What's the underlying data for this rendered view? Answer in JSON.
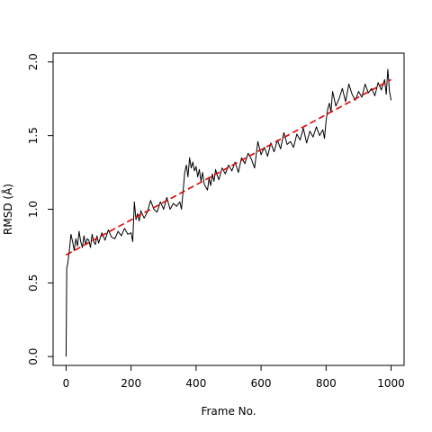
{
  "chart_data": {
    "type": "line",
    "xlabel": "Frame No.",
    "ylabel": "RMSD (Å)",
    "xlim": [
      -40,
      1040
    ],
    "ylim": [
      -0.06,
      2.06
    ],
    "x_ticks": [
      0,
      200,
      400,
      600,
      800,
      1000
    ],
    "x_tick_labels": [
      "0",
      "200",
      "400",
      "600",
      "800",
      "1000"
    ],
    "y_ticks": [
      0.0,
      0.5,
      1.0,
      1.5,
      2.0
    ],
    "y_tick_labels": [
      "0.0",
      "0.5",
      "1.0",
      "1.5",
      "2.0"
    ],
    "grid": false,
    "legend": "none",
    "series": [
      {
        "style": "solid",
        "color": "#000000",
        "x": [
          0,
          2,
          5,
          10,
          15,
          20,
          25,
          30,
          35,
          40,
          45,
          50,
          55,
          60,
          65,
          70,
          75,
          80,
          85,
          90,
          95,
          100,
          110,
          120,
          130,
          140,
          150,
          160,
          170,
          180,
          190,
          200,
          205,
          210,
          215,
          220,
          225,
          230,
          240,
          250,
          260,
          270,
          280,
          290,
          300,
          310,
          320,
          330,
          340,
          350,
          355,
          360,
          365,
          370,
          375,
          380,
          385,
          390,
          395,
          400,
          405,
          410,
          415,
          420,
          425,
          430,
          435,
          440,
          445,
          450,
          455,
          460,
          465,
          470,
          480,
          490,
          500,
          510,
          520,
          530,
          540,
          550,
          560,
          570,
          580,
          590,
          600,
          610,
          620,
          630,
          640,
          650,
          660,
          670,
          680,
          690,
          700,
          710,
          720,
          730,
          740,
          750,
          760,
          770,
          780,
          790,
          795,
          800,
          805,
          810,
          815,
          820,
          830,
          840,
          850,
          860,
          870,
          880,
          890,
          900,
          910,
          920,
          930,
          940,
          950,
          960,
          970,
          980,
          985,
          990,
          995,
          1000
        ],
        "values": [
          0.0,
          0.6,
          0.63,
          0.72,
          0.83,
          0.78,
          0.72,
          0.8,
          0.75,
          0.85,
          0.78,
          0.74,
          0.82,
          0.76,
          0.8,
          0.79,
          0.74,
          0.83,
          0.78,
          0.76,
          0.82,
          0.77,
          0.84,
          0.79,
          0.86,
          0.81,
          0.8,
          0.85,
          0.82,
          0.87,
          0.83,
          0.84,
          0.78,
          1.05,
          0.93,
          0.97,
          0.92,
          0.99,
          0.94,
          0.98,
          1.06,
          1.0,
          0.98,
          1.05,
          1.0,
          1.08,
          1.0,
          1.04,
          1.02,
          1.05,
          1.0,
          1.12,
          1.25,
          1.3,
          1.22,
          1.35,
          1.28,
          1.32,
          1.26,
          1.29,
          1.22,
          1.27,
          1.19,
          1.25,
          1.17,
          1.15,
          1.13,
          1.21,
          1.16,
          1.24,
          1.19,
          1.27,
          1.23,
          1.2,
          1.28,
          1.24,
          1.3,
          1.26,
          1.32,
          1.25,
          1.35,
          1.31,
          1.38,
          1.34,
          1.28,
          1.46,
          1.37,
          1.42,
          1.36,
          1.45,
          1.39,
          1.47,
          1.41,
          1.52,
          1.44,
          1.46,
          1.42,
          1.51,
          1.47,
          1.55,
          1.45,
          1.53,
          1.49,
          1.56,
          1.5,
          1.54,
          1.48,
          1.6,
          1.68,
          1.72,
          1.66,
          1.8,
          1.7,
          1.75,
          1.82,
          1.73,
          1.85,
          1.78,
          1.74,
          1.8,
          1.76,
          1.85,
          1.79,
          1.82,
          1.77,
          1.86,
          1.81,
          1.88,
          1.78,
          1.95,
          1.8,
          1.74
        ]
      },
      {
        "style": "dashed",
        "color": "#e00000",
        "x": [
          0,
          1000
        ],
        "values": [
          0.69,
          1.88
        ]
      }
    ]
  }
}
